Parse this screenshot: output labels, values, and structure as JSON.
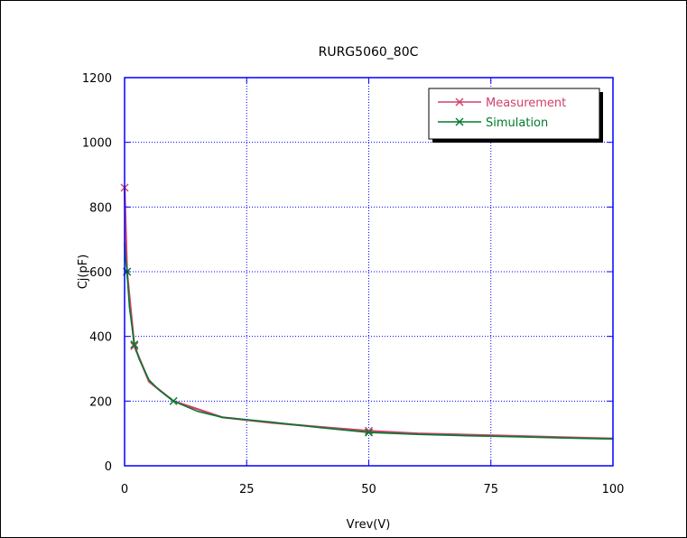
{
  "chart_data": {
    "type": "line",
    "title": "RURG5060_80C",
    "xlabel": "Vrev(V)",
    "ylabel": "Cj(pF)",
    "xlim": [
      0,
      100
    ],
    "ylim": [
      0,
      1200
    ],
    "xticks": [
      0,
      25,
      50,
      75,
      100
    ],
    "yticks": [
      0,
      200,
      400,
      600,
      800,
      1000,
      1200
    ],
    "grid": true,
    "grid_style": "dotted",
    "legend_position": "top-right",
    "series": [
      {
        "name": "Measurement",
        "color": "#d0406a",
        "marker": "x",
        "x": [
          0,
          0.5,
          2,
          5,
          10,
          20,
          30,
          40,
          50,
          60,
          70,
          80,
          90,
          100
        ],
        "y": [
          860,
          600,
          370,
          260,
          200,
          150,
          133,
          120,
          108,
          100,
          96,
          92,
          88,
          84
        ],
        "marker_indices": [
          0,
          1,
          2,
          8
        ]
      },
      {
        "name": "Simulation",
        "color": "#007a2e",
        "marker": "x",
        "x": [
          0,
          0.2,
          0.5,
          1,
          2,
          3,
          5,
          7,
          10,
          15,
          20,
          30,
          40,
          50,
          60,
          70,
          80,
          90,
          100
        ],
        "y": [
          690,
          640,
          600,
          490,
          375,
          330,
          265,
          235,
          200,
          168,
          150,
          135,
          118,
          103,
          97,
          93,
          90,
          86,
          83
        ],
        "marker_indices": [
          2,
          4,
          8,
          13
        ]
      }
    ]
  }
}
